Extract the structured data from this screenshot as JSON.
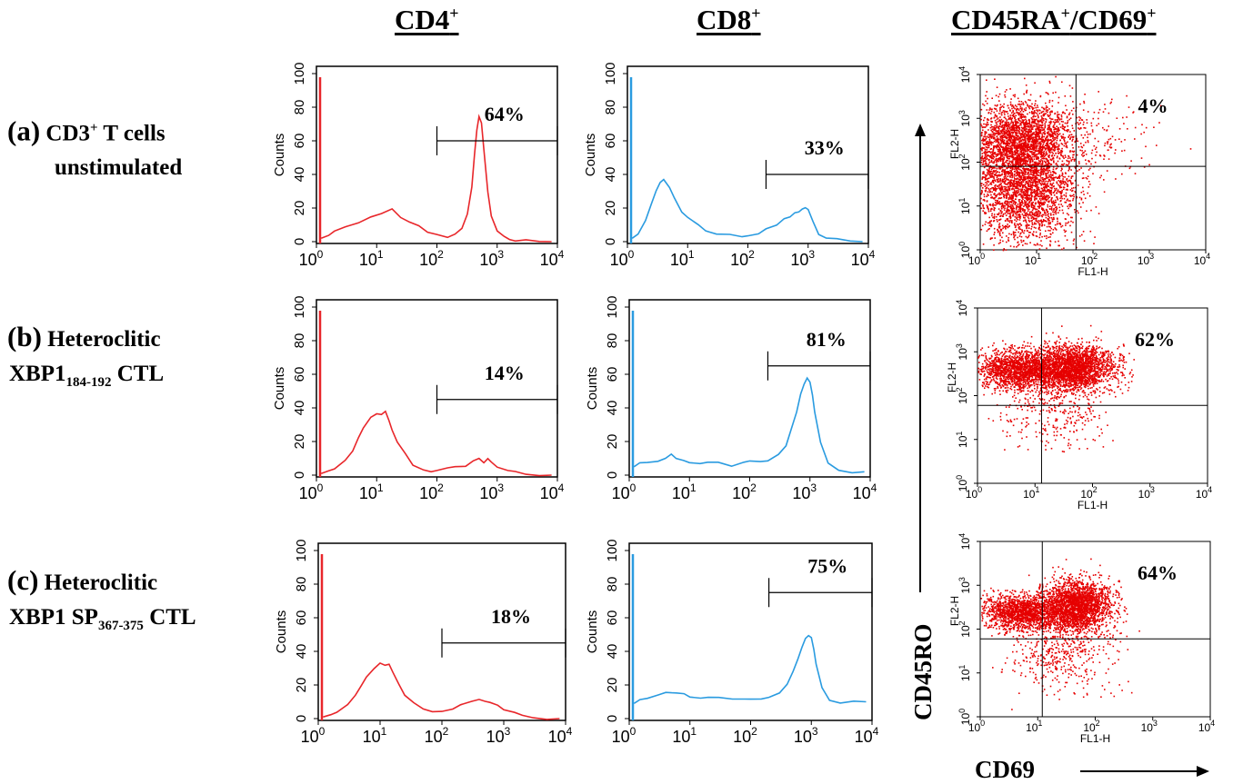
{
  "column_titles": {
    "cd4": "CD4",
    "cd4_sup": "+",
    "cd8": "CD8",
    "cd8_sup": "+",
    "ra": "CD45RA",
    "ra_sup": "+",
    "ra_sep": "/CD69",
    "ra_sup2": "+"
  },
  "row_labels": {
    "a": {
      "letter": "(a)",
      "line1_a": "CD3",
      "line1_sup": "+",
      "line1_b": " T cells",
      "line2": "unstimulated"
    },
    "b": {
      "letter": "(b)",
      "line1": "Heteroclitic",
      "line2_a": "XBP1",
      "line2_sub": "184-192",
      "line2_b": " CTL"
    },
    "c": {
      "letter": "(c)",
      "line1": "Heteroclitic",
      "line2_a": "XBP1 SP",
      "line2_sub": "367-375",
      "line2_b": " CTL"
    }
  },
  "big_axis": {
    "y": "CD45RO",
    "x": "CD69"
  },
  "colors": {
    "cd4": "#e8262a",
    "cd8": "#2a9be0",
    "dots": "#e60000"
  },
  "chart_data": [
    {
      "type": "line",
      "id": "a-cd4",
      "ylabel": "Counts",
      "x_scale": "log",
      "xlim": [
        1,
        10000
      ],
      "ylim": [
        0,
        100
      ],
      "y_ticks": [
        "0",
        "20",
        "40",
        "60",
        "80",
        "100"
      ],
      "gate_label": "64%",
      "gate": [
        100,
        10000
      ],
      "gate_level": 60,
      "series": [
        {
          "color": "#e8262a",
          "x": [
            1.2,
            1.6,
            2,
            3,
            5,
            8,
            12,
            18,
            25,
            35,
            50,
            70,
            100,
            150,
            200,
            260,
            320,
            380,
            420,
            460,
            500,
            550,
            600,
            700,
            800,
            1000,
            1300,
            1600,
            2000,
            3000,
            5000,
            8000
          ],
          "y": [
            2,
            4,
            6,
            9,
            12,
            15,
            17,
            19,
            15,
            12,
            10,
            6,
            4,
            3,
            4,
            8,
            16,
            32,
            52,
            67,
            75,
            70,
            55,
            30,
            15,
            6,
            3,
            2,
            1,
            1,
            0,
            0
          ]
        }
      ]
    },
    {
      "type": "line",
      "id": "a-cd8",
      "ylabel": "Counts",
      "x_scale": "log",
      "xlim": [
        1,
        10000
      ],
      "ylim": [
        0,
        100
      ],
      "y_ticks": [
        "0",
        "20",
        "40",
        "60",
        "80",
        "100"
      ],
      "gate_label": "33%",
      "gate": [
        200,
        10000
      ],
      "gate_level": 40,
      "series": [
        {
          "color": "#2a9be0",
          "x": [
            1.2,
            1.5,
            2,
            2.5,
            3,
            3.5,
            4,
            5,
            6,
            8,
            10,
            15,
            20,
            30,
            50,
            80,
            100,
            150,
            200,
            300,
            400,
            500,
            600,
            700,
            800,
            900,
            1000,
            1200,
            1500,
            2000,
            3000,
            5000,
            8000
          ],
          "y": [
            2,
            5,
            12,
            22,
            30,
            35,
            37,
            33,
            26,
            18,
            14,
            10,
            7,
            5,
            4,
            3,
            4,
            5,
            7,
            10,
            13,
            15,
            17,
            18,
            19,
            20,
            19,
            12,
            5,
            2,
            1,
            0,
            0
          ]
        }
      ]
    },
    {
      "type": "line",
      "id": "b-cd4",
      "ylabel": "Counts",
      "x_scale": "log",
      "xlim": [
        1,
        10000
      ],
      "ylim": [
        0,
        100
      ],
      "y_ticks": [
        "0",
        "20",
        "40",
        "60",
        "80",
        "100"
      ],
      "gate_label": "14%",
      "gate": [
        100,
        10000
      ],
      "gate_level": 45,
      "series": [
        {
          "color": "#e8262a",
          "x": [
            1.2,
            1.6,
            2,
            3,
            4,
            5,
            6,
            8,
            10,
            12,
            14,
            16,
            18,
            22,
            30,
            40,
            60,
            80,
            100,
            150,
            200,
            300,
            400,
            500,
            600,
            700,
            800,
            1000,
            1500,
            2000,
            3000,
            5000,
            8000
          ],
          "y": [
            1,
            2,
            4,
            8,
            14,
            22,
            28,
            34,
            37,
            36,
            38,
            33,
            27,
            20,
            12,
            6,
            3,
            2,
            3,
            4,
            5,
            6,
            8,
            10,
            8,
            10,
            7,
            5,
            3,
            2,
            1,
            0,
            0
          ]
        }
      ]
    },
    {
      "type": "line",
      "id": "b-cd8",
      "ylabel": "Counts",
      "x_scale": "log",
      "xlim": [
        1,
        10000
      ],
      "ylim": [
        0,
        100
      ],
      "y_ticks": [
        "0",
        "20",
        "40",
        "60",
        "80",
        "100"
      ],
      "gate_label": "81%",
      "gate": [
        200,
        10000
      ],
      "gate_level": 65,
      "series": [
        {
          "color": "#2a9be0",
          "x": [
            1.2,
            1.5,
            2,
            3,
            4,
            5,
            6,
            8,
            10,
            15,
            20,
            30,
            50,
            80,
            100,
            150,
            200,
            300,
            400,
            500,
            600,
            700,
            800,
            900,
            1000,
            1100,
            1200,
            1500,
            2000,
            3000,
            5000,
            8000
          ],
          "y": [
            5,
            7,
            8,
            9,
            10,
            12,
            10,
            9,
            8,
            7,
            8,
            7,
            6,
            7,
            8,
            8,
            9,
            12,
            18,
            28,
            38,
            48,
            54,
            57,
            55,
            48,
            38,
            20,
            8,
            3,
            2,
            2
          ]
        }
      ]
    },
    {
      "type": "line",
      "id": "c-cd4",
      "ylabel": "Counts",
      "x_scale": "log",
      "xlim": [
        1,
        10000
      ],
      "ylim": [
        0,
        100
      ],
      "y_ticks": [
        "0",
        "20",
        "40",
        "60",
        "80",
        "100"
      ],
      "gate_label": "18%",
      "gate": [
        100,
        10000
      ],
      "gate_level": 45,
      "series": [
        {
          "color": "#e8262a",
          "x": [
            1.2,
            1.6,
            2,
            3,
            4,
            5,
            6,
            8,
            10,
            12,
            14,
            16,
            20,
            25,
            35,
            50,
            70,
            100,
            150,
            200,
            300,
            400,
            500,
            600,
            800,
            1000,
            1500,
            2000,
            3000,
            5000,
            8000
          ],
          "y": [
            1,
            2,
            3,
            8,
            14,
            20,
            25,
            30,
            33,
            32,
            33,
            28,
            20,
            14,
            9,
            6,
            4,
            4,
            6,
            8,
            10,
            11,
            10,
            9,
            8,
            6,
            4,
            2,
            1,
            0,
            0
          ]
        }
      ]
    },
    {
      "type": "line",
      "id": "c-cd8",
      "ylabel": "Counts",
      "x_scale": "log",
      "xlim": [
        1,
        10000
      ],
      "ylim": [
        0,
        100
      ],
      "y_ticks": [
        "0",
        "20",
        "40",
        "60",
        "80",
        "100"
      ],
      "gate_label": "75%",
      "gate": [
        200,
        10000
      ],
      "gate_level": 75,
      "series": [
        {
          "color": "#2a9be0",
          "x": [
            1.2,
            1.5,
            2,
            3,
            4,
            5,
            6,
            8,
            10,
            15,
            20,
            30,
            50,
            80,
            100,
            150,
            200,
            300,
            400,
            500,
            600,
            700,
            800,
            900,
            1000,
            1100,
            1200,
            1500,
            2000,
            3000,
            5000,
            8000
          ],
          "y": [
            9,
            11,
            12,
            14,
            15,
            16,
            15,
            14,
            13,
            12,
            12,
            12,
            11,
            11,
            12,
            12,
            13,
            15,
            20,
            28,
            36,
            42,
            47,
            50,
            48,
            42,
            32,
            18,
            11,
            10,
            10,
            10
          ]
        }
      ]
    },
    {
      "type": "scatter",
      "id": "a-ra",
      "xlabel": "FL1-H",
      "ylabel": "FL2-H",
      "x_scale": "log",
      "y_scale": "log",
      "xlim": [
        1,
        10000
      ],
      "ylim": [
        1,
        10000
      ],
      "quadrant": [
        50,
        80
      ],
      "quadrant_label": "4%",
      "clusters": [
        {
          "cx": 5,
          "cy": 300,
          "sx": 0.45,
          "sy": 0.45,
          "n": 2600
        },
        {
          "cx": 6,
          "cy": 20,
          "sx": 0.45,
          "sy": 0.55,
          "n": 2200
        },
        {
          "cx": 80,
          "cy": 400,
          "sx": 0.55,
          "sy": 0.5,
          "n": 180
        }
      ]
    },
    {
      "type": "scatter",
      "id": "b-ra",
      "xlabel": "FL1-H",
      "ylabel": "FL2-H",
      "x_scale": "log",
      "y_scale": "log",
      "xlim": [
        1,
        10000
      ],
      "ylim": [
        1,
        10000
      ],
      "quadrant": [
        13,
        60
      ],
      "quadrant_label": "62%",
      "clusters": [
        {
          "cx": 5,
          "cy": 400,
          "sx": 0.35,
          "sy": 0.22,
          "n": 1600
        },
        {
          "cx": 45,
          "cy": 450,
          "sx": 0.35,
          "sy": 0.25,
          "n": 2400
        },
        {
          "cx": 20,
          "cy": 50,
          "sx": 0.45,
          "sy": 0.45,
          "n": 350
        }
      ]
    },
    {
      "type": "scatter",
      "id": "c-ra",
      "xlabel": "FL1-H",
      "ylabel": "FL2-H",
      "x_scale": "log",
      "y_scale": "log",
      "xlim": [
        1,
        10000
      ],
      "ylim": [
        1,
        10000
      ],
      "quadrant": [
        12,
        60
      ],
      "quadrant_label": "64%",
      "clusters": [
        {
          "cx": 5,
          "cy": 250,
          "sx": 0.32,
          "sy": 0.2,
          "n": 1400
        },
        {
          "cx": 45,
          "cy": 350,
          "sx": 0.3,
          "sy": 0.28,
          "n": 2400
        },
        {
          "cx": 25,
          "cy": 40,
          "sx": 0.45,
          "sy": 0.5,
          "n": 500
        }
      ]
    }
  ]
}
